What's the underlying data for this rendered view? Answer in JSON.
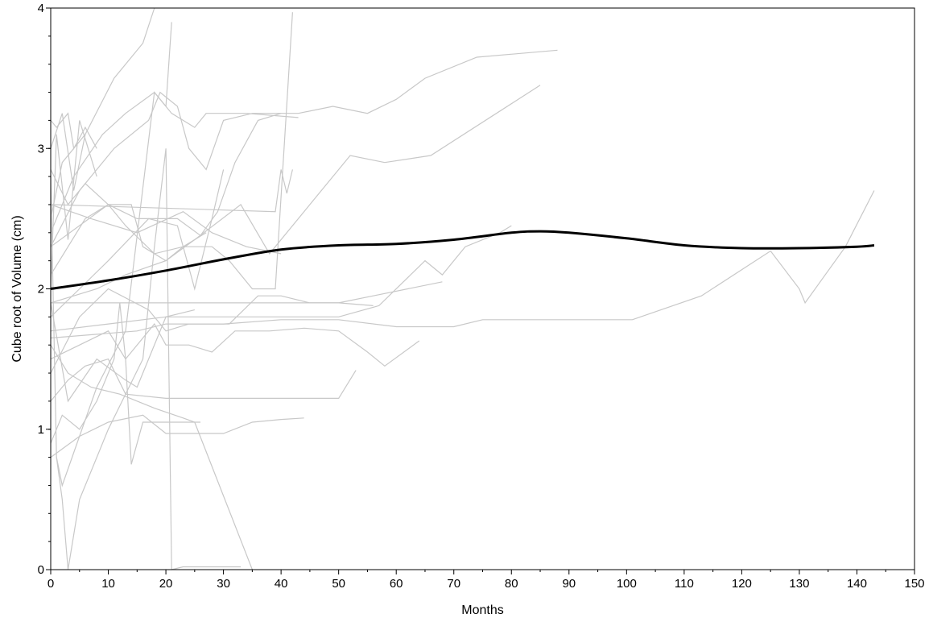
{
  "chart_data": {
    "type": "line",
    "title": "",
    "xlabel": "Months",
    "ylabel": "Cube root of Volume (cm)",
    "xlim": [
      0,
      150
    ],
    "ylim": [
      0,
      4
    ],
    "x_ticks": [
      0,
      10,
      20,
      30,
      40,
      50,
      60,
      70,
      80,
      90,
      100,
      110,
      120,
      130,
      140,
      150
    ],
    "y_ticks": [
      0,
      1,
      2,
      3,
      4
    ],
    "grid": false,
    "legend": "none",
    "colors": {
      "individual": "#c8c8c8",
      "mean": "#000000",
      "axis": "#000000"
    },
    "mean_curve": {
      "x": [
        0,
        10,
        20,
        30,
        40,
        50,
        60,
        70,
        80,
        85,
        90,
        100,
        110,
        120,
        130,
        140,
        143
      ],
      "y": [
        2.0,
        2.06,
        2.13,
        2.21,
        2.28,
        2.31,
        2.32,
        2.35,
        2.4,
        2.41,
        2.4,
        2.36,
        2.31,
        2.29,
        2.29,
        2.3,
        2.31
      ]
    },
    "individual_series": [
      {
        "x": [
          0,
          2,
          6,
          11,
          16,
          18
        ],
        "y": [
          2.5,
          2.9,
          3.1,
          3.5,
          3.75,
          4.0
        ]
      },
      {
        "x": [
          0,
          4,
          9,
          13,
          18,
          21,
          25,
          27,
          34,
          43
        ],
        "y": [
          2.4,
          2.8,
          3.1,
          3.25,
          3.4,
          3.25,
          3.15,
          3.25,
          3.25,
          3.22
        ]
      },
      {
        "x": [
          0,
          5,
          11,
          17,
          19,
          22,
          24,
          27,
          30,
          35,
          40
        ],
        "y": [
          2.3,
          2.7,
          3.0,
          3.2,
          3.4,
          3.3,
          3.0,
          2.85,
          3.2,
          3.25,
          3.25
        ]
      },
      {
        "x": [
          0,
          3,
          6,
          10,
          15,
          22,
          26,
          29,
          32,
          36,
          40,
          43,
          49,
          55,
          60,
          65,
          74,
          88
        ],
        "y": [
          2.1,
          2.3,
          2.5,
          2.6,
          2.5,
          2.5,
          2.38,
          2.55,
          2.9,
          3.2,
          3.25,
          3.25,
          3.3,
          3.25,
          3.35,
          3.5,
          3.65,
          3.7
        ]
      },
      {
        "x": [
          0,
          8,
          13,
          20,
          25,
          33,
          38,
          45,
          52,
          58,
          66,
          85
        ],
        "y": [
          1.9,
          2.0,
          2.1,
          2.2,
          2.35,
          2.6,
          2.25,
          2.6,
          2.95,
          2.9,
          2.95,
          3.45
        ]
      },
      {
        "x": [
          0,
          1,
          3,
          4,
          6,
          8
        ],
        "y": [
          3.2,
          3.15,
          3.25,
          3.0,
          3.15,
          3.0
        ]
      },
      {
        "x": [
          0,
          2,
          4,
          6
        ],
        "y": [
          3.0,
          3.25,
          2.7,
          3.1
        ]
      },
      {
        "x": [
          0,
          1,
          3,
          5,
          8
        ],
        "y": [
          2.0,
          3.1,
          2.35,
          3.2,
          2.8
        ]
      },
      {
        "x": [
          0,
          3,
          6,
          10,
          13,
          18,
          23,
          27
        ],
        "y": [
          2.85,
          2.6,
          2.75,
          2.6,
          2.45,
          2.25,
          2.3,
          2.4
        ]
      },
      {
        "x": [
          0,
          7,
          15,
          23,
          28,
          34,
          40
        ],
        "y": [
          2.6,
          2.5,
          2.4,
          2.55,
          2.4,
          2.3,
          2.25
        ]
      },
      {
        "x": [
          0,
          39,
          40,
          41,
          42,
          42
        ],
        "y": [
          2.6,
          2.55,
          2.85,
          2.68,
          2.85,
          2.85
        ]
      },
      {
        "x": [
          0,
          10,
          14,
          16,
          20,
          23,
          28,
          31,
          35,
          39,
          42
        ],
        "y": [
          2.3,
          2.6,
          2.6,
          2.3,
          2.2,
          2.3,
          2.3,
          2.2,
          2.0,
          2.0,
          3.97
        ]
      },
      {
        "x": [
          0,
          5,
          10,
          17,
          22,
          25,
          28,
          30
        ],
        "y": [
          1.8,
          2.0,
          2.2,
          2.5,
          2.45,
          2.0,
          2.5,
          2.85
        ]
      },
      {
        "x": [
          0,
          5,
          10,
          17,
          20,
          24,
          31,
          36,
          40,
          45,
          50,
          56,
          68
        ],
        "y": [
          1.4,
          1.8,
          2.0,
          1.85,
          1.7,
          1.75,
          1.75,
          1.95,
          1.95,
          1.9,
          1.9,
          1.95,
          2.05
        ]
      },
      {
        "x": [
          0,
          50,
          56
        ],
        "y": [
          1.9,
          1.9,
          1.88
        ]
      },
      {
        "x": [
          0,
          10,
          20,
          30,
          40,
          50,
          57,
          65,
          68,
          72,
          78,
          80
        ],
        "y": [
          1.7,
          1.75,
          1.8,
          1.8,
          1.8,
          1.8,
          1.88,
          2.2,
          2.1,
          2.3,
          2.4,
          2.45
        ]
      },
      {
        "x": [
          0,
          15,
          20,
          30,
          40,
          50,
          60,
          70,
          75,
          80,
          90,
          101,
          113,
          125,
          130,
          131,
          138,
          143
        ],
        "y": [
          1.65,
          1.7,
          1.75,
          1.75,
          1.78,
          1.78,
          1.73,
          1.73,
          1.78,
          1.78,
          1.78,
          1.78,
          1.95,
          2.27,
          2.0,
          1.9,
          2.3,
          2.7
        ]
      },
      {
        "x": [
          0,
          5,
          10,
          13,
          15,
          18,
          20,
          24,
          28,
          32,
          38,
          44,
          50,
          55,
          58,
          64
        ],
        "y": [
          1.5,
          1.6,
          1.7,
          1.5,
          1.6,
          1.75,
          1.6,
          1.6,
          1.55,
          1.7,
          1.7,
          1.72,
          1.7,
          1.55,
          1.45,
          1.63
        ]
      },
      {
        "x": [
          0,
          3,
          6,
          10,
          13,
          20,
          23,
          26,
          30,
          40,
          50,
          53
        ],
        "y": [
          1.2,
          1.35,
          1.45,
          1.5,
          1.25,
          1.22,
          1.22,
          1.22,
          1.22,
          1.22,
          1.22,
          1.42
        ]
      },
      {
        "x": [
          0,
          5,
          10,
          16,
          20,
          25,
          30,
          35,
          40,
          44
        ],
        "y": [
          0.8,
          0.95,
          1.05,
          1.1,
          0.97,
          0.97,
          0.97,
          1.05,
          1.07,
          1.08
        ]
      },
      {
        "x": [
          0,
          2,
          5,
          8,
          11,
          12,
          13,
          14,
          16,
          20,
          26
        ],
        "y": [
          0.9,
          1.1,
          1.0,
          1.2,
          1.5,
          1.9,
          1.5,
          0.75,
          1.05,
          1.05,
          1.05
        ]
      },
      {
        "x": [
          0,
          3,
          7,
          12,
          18,
          23,
          25,
          35
        ],
        "y": [
          1.6,
          1.4,
          1.3,
          1.25,
          1.15,
          1.08,
          1.05,
          0.0
        ]
      },
      {
        "x": [
          0,
          1,
          2,
          3,
          5,
          10,
          16,
          18,
          20,
          21,
          23,
          33
        ],
        "y": [
          2.8,
          0.8,
          0.5,
          0.0,
          0.5,
          1.0,
          1.5,
          2.3,
          3.0,
          0.0,
          0.02,
          0.02
        ]
      },
      {
        "x": [
          1,
          2,
          8,
          13,
          18,
          20,
          21
        ],
        "y": [
          0.8,
          0.6,
          1.3,
          1.7,
          3.4,
          3.3,
          3.9
        ]
      },
      {
        "x": [
          0,
          3,
          8,
          13,
          15,
          20,
          25
        ],
        "y": [
          1.9,
          1.2,
          1.5,
          1.35,
          1.3,
          1.8,
          1.85
        ]
      }
    ]
  }
}
